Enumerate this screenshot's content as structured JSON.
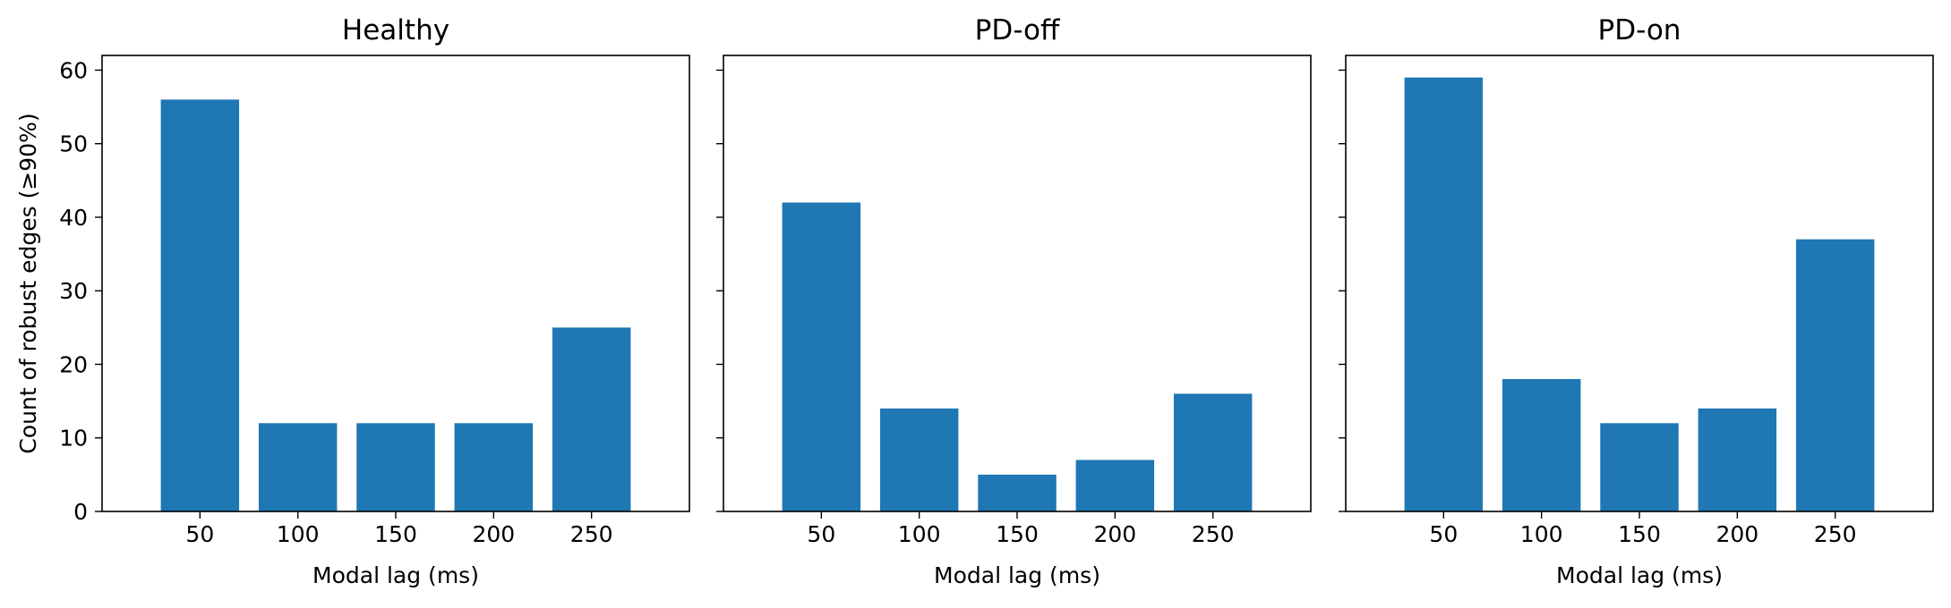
{
  "chart_data": [
    {
      "type": "bar",
      "title": "Healthy",
      "xlabel": "Modal lag (ms)",
      "ylabel": "Count of robust edges (≥90%)",
      "categories": [
        "50",
        "100",
        "150",
        "200",
        "250"
      ],
      "values": [
        56,
        12,
        12,
        12,
        25
      ],
      "ylim": [
        0,
        62
      ],
      "yticks": [
        "0",
        "10",
        "20",
        "30",
        "40",
        "50",
        "60"
      ],
      "bar_color": "#1f77b4",
      "grid": false
    },
    {
      "type": "bar",
      "title": "PD-off",
      "xlabel": "Modal lag (ms)",
      "ylabel": "",
      "categories": [
        "50",
        "100",
        "150",
        "200",
        "250"
      ],
      "values": [
        42,
        14,
        5,
        7,
        16
      ],
      "ylim": [
        0,
        62
      ],
      "bar_color": "#1f77b4",
      "grid": false
    },
    {
      "type": "bar",
      "title": "PD-on",
      "xlabel": "Modal lag (ms)",
      "ylabel": "",
      "categories": [
        "50",
        "100",
        "150",
        "200",
        "250"
      ],
      "values": [
        59,
        18,
        12,
        14,
        37
      ],
      "ylim": [
        0,
        62
      ],
      "bar_color": "#1f77b4",
      "grid": false
    }
  ]
}
